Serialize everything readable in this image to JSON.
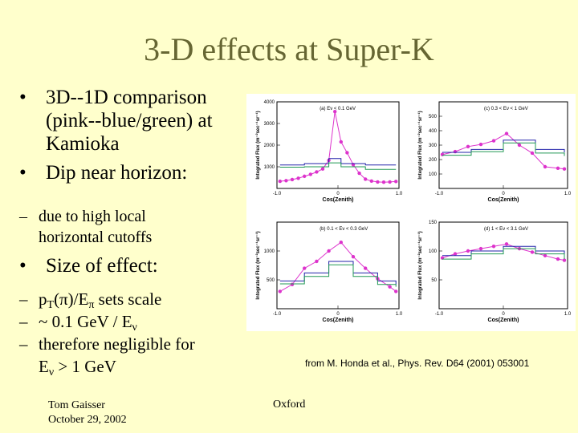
{
  "slide": {
    "title": "3-D effects at Super-K",
    "bullets": [
      {
        "text_lines": [
          "3D--1D comparison",
          "(pink--blue/green) at",
          "Kamioka"
        ]
      },
      {
        "text_lines": [
          "Dip near horizon:"
        ]
      },
      {
        "text_lines": [
          "Size of effect:"
        ]
      }
    ],
    "sub_dip": [
      "due to high local",
      "horizontal cutoffs"
    ],
    "sub_size": [
      {
        "lines": [
          "p",
          "T",
          "(π)/E",
          "π",
          " sets scale"
        ]
      },
      {
        "lines": [
          "~ 0.1 GeV / E",
          "ν"
        ]
      },
      {
        "lines": [
          "therefore negligible for",
          "E",
          "ν",
          " > 1 GeV"
        ]
      }
    ],
    "credit": "from M. Honda et al., Phys. Rev. D64 (2001) 053001",
    "footer_author": "Tom Gaisser",
    "footer_date": "October 29, 2002",
    "footer_place": "Oxford"
  },
  "chart_data": [
    {
      "type": "line",
      "title": "(a) Eν < 0.1 GeV",
      "xlabel": "Cos(Zenith)",
      "ylabel": "Integrated Flux (m⁻²sec⁻¹sr⁻¹)",
      "xlim": [
        -1.0,
        1.0
      ],
      "ylim": [
        0,
        4000
      ],
      "x_ticks": [
        "-1.0",
        "0",
        "1.0"
      ],
      "y_ticks": [
        "1000",
        "2000",
        "3000",
        "4000"
      ],
      "series": [
        {
          "color": "#dd33cc",
          "x": [
            -0.95,
            -0.85,
            -0.75,
            -0.65,
            -0.55,
            -0.45,
            -0.35,
            -0.25,
            -0.15,
            -0.05,
            0.05,
            0.15,
            0.25,
            0.35,
            0.45,
            0.55,
            0.65,
            0.75,
            0.85,
            0.95
          ],
          "y": [
            330,
            360,
            410,
            470,
            560,
            650,
            760,
            900,
            1300,
            3550,
            2150,
            1650,
            1100,
            700,
            430,
            340,
            300,
            290,
            300,
            320
          ]
        },
        {
          "color": "#2222aa",
          "x": [
            -0.95,
            -0.55,
            -0.15,
            0.05,
            0.45,
            0.95
          ],
          "y": [
            1080,
            1150,
            1380,
            1150,
            1080,
            1080
          ]
        },
        {
          "color": "#229955",
          "x": [
            -0.95,
            -0.55,
            -0.15,
            0.05,
            0.45,
            0.95
          ],
          "y": [
            980,
            1000,
            1180,
            1000,
            880,
            880
          ]
        }
      ]
    },
    {
      "type": "line",
      "title": "(c) 0.3 < Eν < 1 GeV",
      "xlabel": "Cos(Zenith)",
      "ylabel": "Integrated Flux (m⁻²sec⁻¹sr⁻¹)",
      "xlim": [
        -1.0,
        1.0
      ],
      "ylim": [
        0,
        600
      ],
      "x_ticks": [
        "-1.0",
        "0",
        "1.0"
      ],
      "y_ticks": [
        "100",
        "200",
        "300",
        "400",
        "500"
      ],
      "series": [
        {
          "color": "#dd33cc",
          "x": [
            -0.95,
            -0.75,
            -0.55,
            -0.35,
            -0.15,
            0.05,
            0.25,
            0.45,
            0.65,
            0.85,
            0.95
          ],
          "y": [
            235,
            255,
            290,
            305,
            330,
            380,
            300,
            245,
            150,
            140,
            135
          ]
        },
        {
          "color": "#2222aa",
          "x": [
            -0.95,
            -0.5,
            0,
            0.5,
            0.95
          ],
          "y": [
            250,
            270,
            335,
            270,
            250
          ]
        },
        {
          "color": "#229955",
          "x": [
            -0.95,
            -0.5,
            0,
            0.5,
            0.95
          ],
          "y": [
            230,
            255,
            315,
            245,
            225
          ]
        }
      ]
    },
    {
      "type": "line",
      "title": "(b) 0.1 < Eν < 0.3 GeV",
      "xlabel": "Cos(Zenith)",
      "ylabel": "Integrated Flux (m⁻²sec⁻¹sr⁻¹)",
      "xlim": [
        -1.0,
        1.0
      ],
      "ylim": [
        0,
        1500
      ],
      "x_ticks": [
        "-1.0",
        "0",
        "1.0"
      ],
      "y_ticks": [
        "500",
        "1000"
      ],
      "series": [
        {
          "color": "#dd33cc",
          "x": [
            -0.95,
            -0.75,
            -0.55,
            -0.35,
            -0.15,
            0.05,
            0.25,
            0.45,
            0.65,
            0.85,
            0.95
          ],
          "y": [
            300,
            420,
            700,
            820,
            1000,
            1150,
            900,
            700,
            520,
            380,
            300
          ]
        },
        {
          "color": "#2222aa",
          "x": [
            -0.95,
            -0.55,
            -0.15,
            0.25,
            0.65,
            0.95
          ],
          "y": [
            480,
            620,
            820,
            620,
            480,
            420
          ]
        },
        {
          "color": "#229955",
          "x": [
            -0.95,
            -0.55,
            -0.15,
            0.25,
            0.65,
            0.95
          ],
          "y": [
            430,
            560,
            760,
            560,
            420,
            380
          ]
        }
      ]
    },
    {
      "type": "line",
      "title": "(d) 1 < Eν < 3.1 GeV",
      "xlabel": "Cos(Zenith)",
      "ylabel": "Integrated Flux (m⁻²sec⁻¹sr⁻¹)",
      "xlim": [
        -1.0,
        1.0
      ],
      "ylim": [
        0,
        150
      ],
      "x_ticks": [
        "-1.0",
        "0",
        "1.0"
      ],
      "y_ticks": [
        "50",
        "100",
        "150"
      ],
      "series": [
        {
          "color": "#dd33cc",
          "x": [
            -0.95,
            -0.75,
            -0.55,
            -0.35,
            -0.15,
            0.05,
            0.25,
            0.45,
            0.65,
            0.85,
            0.95
          ],
          "y": [
            88,
            95,
            100,
            104,
            108,
            112,
            104,
            98,
            92,
            86,
            84
          ]
        },
        {
          "color": "#2222aa",
          "x": [
            -0.95,
            -0.5,
            0,
            0.5,
            0.95
          ],
          "y": [
            92,
            100,
            108,
            100,
            90
          ]
        },
        {
          "color": "#229955",
          "x": [
            -0.95,
            -0.5,
            0,
            0.5,
            0.95
          ],
          "y": [
            86,
            95,
            104,
            95,
            86
          ]
        }
      ]
    }
  ]
}
